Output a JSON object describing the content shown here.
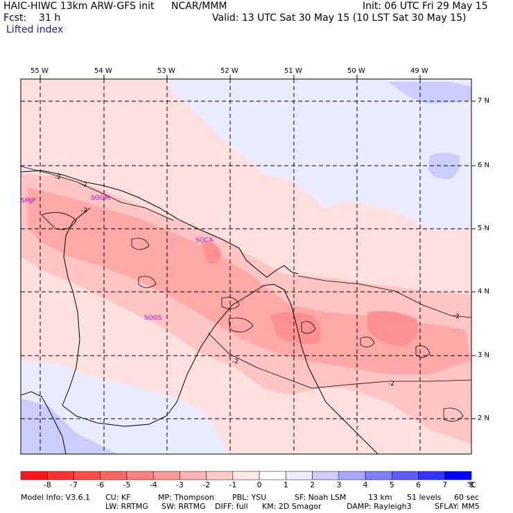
{
  "header": {
    "model": "HAIC-HIWC 13km ARW-GFS init",
    "source": "NCAR/MMM",
    "init": "Init: 06 UTC Fri 29 May 15",
    "fcst": "Fcst:    31 h",
    "valid": "Valid: 13 UTC Sat 30 May 15 (10 LST Sat 30 May 15)",
    "field": "Lifted index"
  },
  "longitudes": [
    "55 W",
    "54 W",
    "53 W",
    "52 W",
    "51 W",
    "50 W",
    "49 W"
  ],
  "latitudes": [
    "7 N",
    "6 N",
    "5 N",
    "4 N",
    "3 N",
    "2 N"
  ],
  "stations": [
    "SMJP",
    "SOGM",
    "SOCA",
    "SOOS"
  ],
  "contour_labels": [
    "-2",
    "-2",
    "-2",
    "-2",
    "-2",
    "-2"
  ],
  "colorbar": {
    "labels": [
      "-8",
      "-7",
      "-6",
      "-5",
      "-4",
      "-3",
      "-2",
      "-1",
      "0",
      "1",
      "2",
      "3",
      "4",
      "5",
      "6",
      "7",
      "8"
    ],
    "unit": "°C",
    "colors": [
      "#ff1a1a",
      "#ff3333",
      "#ff4d4d",
      "#ff6666",
      "#ff8080",
      "#ff9999",
      "#ffb3b3",
      "#ffcccc",
      "#ffe8e8",
      "#ffffff",
      "#ececff",
      "#ccccff",
      "#a8a8ff",
      "#8080ff",
      "#5c5cff",
      "#3333ff",
      "#0000ff"
    ]
  },
  "footer": {
    "line1": [
      "Model Info: V3.6.1",
      "CU: KF",
      "MP: Thompson",
      "PBL: YSU",
      "SF: Noah LSM",
      "13 km",
      "51 levels",
      "60 sec"
    ],
    "line2": [
      "LW: RRTMG",
      "SW: RRTMG",
      "DIFF: full",
      "KM: 2D Smagor",
      "DAMP: Rayleigh3",
      "SFLAY: MM5"
    ]
  }
}
